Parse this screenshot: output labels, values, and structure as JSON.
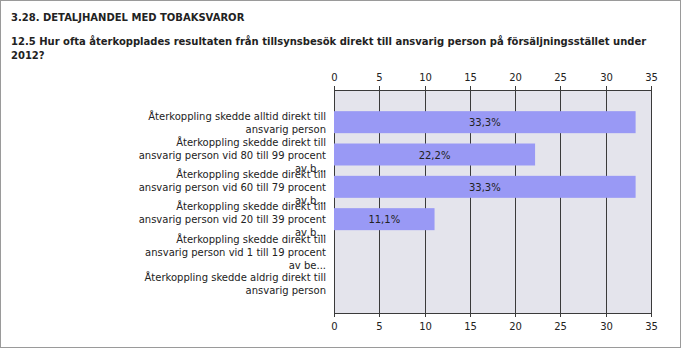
{
  "chart_data": {
    "type": "bar",
    "orientation": "horizontal",
    "title": "3.28. DETALJHANDEL MED TOBAKSVAROR",
    "subtitle": "12.5 Hur ofta återkopplades resultaten från tillsynsbesök direkt till ansvarig person på försäljningsstället under 2012?",
    "categories": [
      "Återkoppling skedde alltid direkt till ansvarig person",
      "Återkoppling skedde direkt till ansvarig person vid 80 till 99 procent av b...",
      "Återkoppling skedde direkt till ansvarig person vid 60 till 79 procent av b...",
      "Återkoppling skedde direkt till ansvarig person vid 20 till 39 procent av b...",
      "Återkoppling skedde direkt till ansvarig person vid 1 till 19 procent av be...",
      "Återkoppling skedde aldrig direkt till ansvarig person"
    ],
    "values": [
      33.3,
      22.2,
      33.3,
      11.1,
      0,
      0
    ],
    "value_labels": [
      "33,3%",
      "22,2%",
      "33,3%",
      "11,1%",
      null,
      null
    ],
    "data_labels": true,
    "color": "#9999f5",
    "xlim": [
      0,
      35
    ],
    "xticks": [
      0,
      5,
      10,
      15,
      20,
      25,
      30,
      35
    ],
    "grid": true
  }
}
